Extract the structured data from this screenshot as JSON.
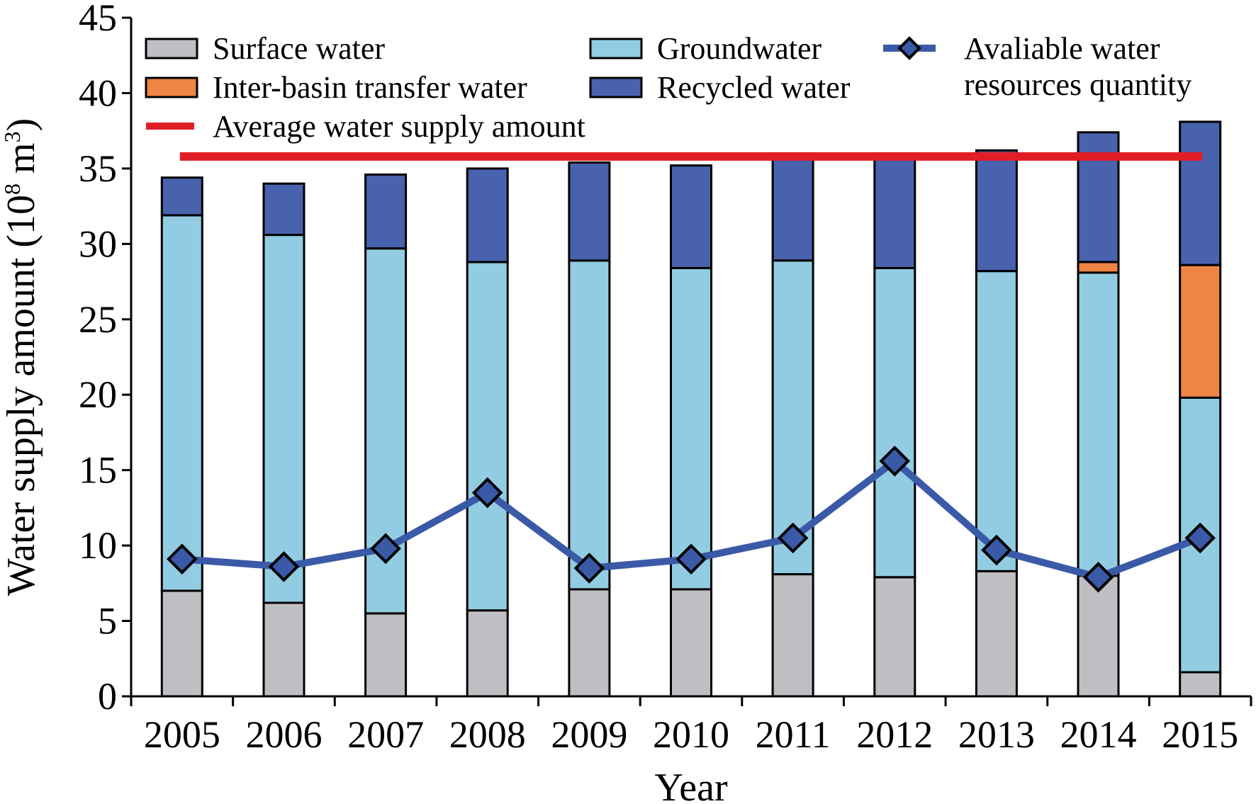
{
  "chart_data": {
    "type": "bar",
    "stacked": true,
    "categories": [
      "2005",
      "2006",
      "2007",
      "2008",
      "2009",
      "2010",
      "2011",
      "2012",
      "2013",
      "2014",
      "2015"
    ],
    "series": [
      {
        "name": "Surface water",
        "type": "bar",
        "color": "#bfbec2",
        "values": [
          7.0,
          6.2,
          5.5,
          5.7,
          7.1,
          7.1,
          8.1,
          7.9,
          8.3,
          8.0,
          1.6
        ]
      },
      {
        "name": "Groundwater",
        "type": "bar",
        "color": "#92cce2",
        "values": [
          24.9,
          24.4,
          24.2,
          23.1,
          21.8,
          21.3,
          20.8,
          20.5,
          19.9,
          20.1,
          18.2
        ]
      },
      {
        "name": "Inter-basin transfer water",
        "type": "bar",
        "color": "#ef8543",
        "values": [
          0,
          0,
          0,
          0,
          0,
          0,
          0,
          0,
          0,
          0.7,
          8.8
        ]
      },
      {
        "name": "Recycled water",
        "type": "bar",
        "color": "#4862ae",
        "values": [
          2.5,
          3.4,
          4.9,
          6.2,
          6.5,
          6.8,
          7.0,
          7.5,
          8.0,
          8.6,
          9.5
        ]
      },
      {
        "name": "Avaliable water resources quantity",
        "type": "line",
        "color": "#3a5aa8",
        "values": [
          9.1,
          8.6,
          9.8,
          13.5,
          8.5,
          9.1,
          10.5,
          15.6,
          9.7,
          7.9,
          10.5
        ]
      },
      {
        "name": "Average water supply amount",
        "type": "hline",
        "color": "#e01e26",
        "value": 35.8
      }
    ],
    "xlabel": "Year",
    "ylabel": "Water supply amount (10",
    "ylabel_sup": "8",
    "ylabel_unit": " m",
    "ylabel_unit_sup": "3",
    "ylabel_close": ")",
    "ylim": [
      0,
      45
    ],
    "yticks": [
      0,
      5,
      10,
      15,
      20,
      25,
      30,
      35,
      40,
      45
    ],
    "grid": false,
    "legend": {
      "placement": "top",
      "entries": [
        {
          "series": 0,
          "label": "Surface water",
          "kind": "box"
        },
        {
          "series": 1,
          "label": "Groundwater",
          "kind": "box"
        },
        {
          "series": 4,
          "label": "Avaliable water",
          "label2": "resources quantity",
          "kind": "line-marker"
        },
        {
          "series": 2,
          "label": "Inter-basin transfer water",
          "kind": "box"
        },
        {
          "series": 3,
          "label": "Recycled water",
          "kind": "box"
        },
        {
          "series": 5,
          "label": "Average water supply amount",
          "kind": "line"
        }
      ]
    }
  }
}
